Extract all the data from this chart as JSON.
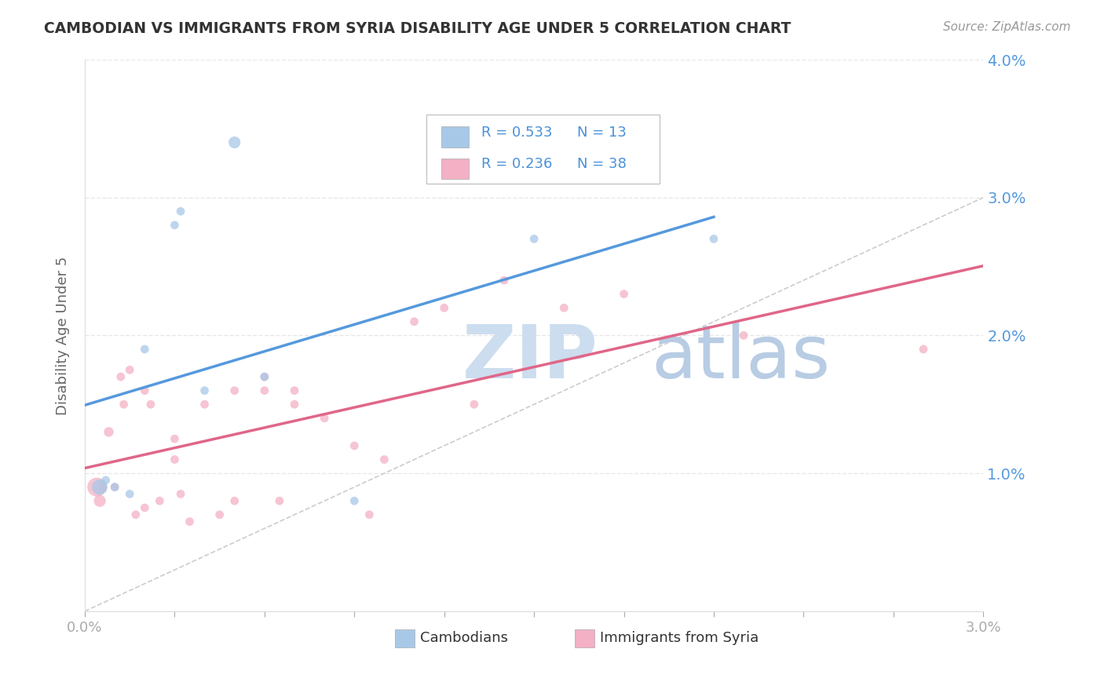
{
  "title": "CAMBODIAN VS IMMIGRANTS FROM SYRIA DISABILITY AGE UNDER 5 CORRELATION CHART",
  "source": "Source: ZipAtlas.com",
  "ylabel": "Disability Age Under 5",
  "xlim": [
    0.0,
    0.03
  ],
  "ylim": [
    0.0,
    0.04
  ],
  "xticks": [
    0.0,
    0.003,
    0.006,
    0.009,
    0.012,
    0.015,
    0.018,
    0.021,
    0.024,
    0.027,
    0.03
  ],
  "yticks": [
    0.0,
    0.01,
    0.02,
    0.03,
    0.04
  ],
  "xtick_labels_show": [
    "0.0%",
    "3.0%"
  ],
  "ytick_labels": [
    "",
    "1.0%",
    "2.0%",
    "3.0%",
    "4.0%"
  ],
  "cambodian_R": "0.533",
  "cambodian_N": "13",
  "syria_R": "0.236",
  "syria_N": "38",
  "cambodian_color": "#a8c8e8",
  "syria_color": "#f4b0c4",
  "cambodian_line_color": "#5599dd",
  "syria_line_color": "#e06688",
  "diagonal_color": "#cccccc",
  "background_color": "#ffffff",
  "grid_color": "#e8e8e8",
  "watermark_text": "ZIP",
  "watermark_text2": "atlas",
  "watermark_color1": "#d0dff0",
  "watermark_color2": "#c8d8f0",
  "tick_color": "#5599dd",
  "cambodian_x": [
    0.0005,
    0.001,
    0.0015,
    0.002,
    0.003,
    0.0032,
    0.004,
    0.005,
    0.006,
    0.009,
    0.015,
    0.021,
    0.0007
  ],
  "cambodian_y": [
    0.009,
    0.009,
    0.0085,
    0.019,
    0.028,
    0.029,
    0.016,
    0.034,
    0.017,
    0.008,
    0.027,
    0.027,
    0.0095
  ],
  "cambodian_size": [
    200,
    60,
    60,
    60,
    60,
    60,
    60,
    120,
    60,
    60,
    60,
    60,
    60
  ],
  "syria_x": [
    0.0004,
    0.0005,
    0.0006,
    0.0008,
    0.001,
    0.0012,
    0.0013,
    0.0015,
    0.0017,
    0.002,
    0.002,
    0.0022,
    0.0025,
    0.003,
    0.003,
    0.0032,
    0.0035,
    0.004,
    0.0045,
    0.005,
    0.005,
    0.006,
    0.006,
    0.0065,
    0.007,
    0.007,
    0.008,
    0.009,
    0.0095,
    0.01,
    0.011,
    0.012,
    0.013,
    0.014,
    0.016,
    0.018,
    0.022,
    0.028
  ],
  "syria_y": [
    0.009,
    0.008,
    0.009,
    0.013,
    0.009,
    0.017,
    0.015,
    0.0175,
    0.007,
    0.0075,
    0.016,
    0.015,
    0.008,
    0.0125,
    0.011,
    0.0085,
    0.0065,
    0.015,
    0.007,
    0.016,
    0.008,
    0.016,
    0.017,
    0.008,
    0.015,
    0.016,
    0.014,
    0.012,
    0.007,
    0.011,
    0.021,
    0.022,
    0.015,
    0.024,
    0.022,
    0.023,
    0.02,
    0.019
  ],
  "syria_size": [
    300,
    120,
    60,
    80,
    60,
    60,
    60,
    60,
    60,
    60,
    60,
    60,
    60,
    60,
    60,
    60,
    60,
    60,
    60,
    60,
    60,
    60,
    60,
    60,
    60,
    60,
    60,
    60,
    60,
    60,
    60,
    60,
    60,
    60,
    60,
    60,
    60,
    60
  ],
  "legend_items": [
    {
      "color": "#a8c8e8",
      "R": "0.533",
      "N": "13"
    },
    {
      "color": "#f4b0c4",
      "R": "0.236",
      "N": "38"
    }
  ],
  "bottom_legend": [
    {
      "color": "#a8c8e8",
      "label": "Cambodians"
    },
    {
      "color": "#f4b0c4",
      "label": "Immigrants from Syria"
    }
  ]
}
